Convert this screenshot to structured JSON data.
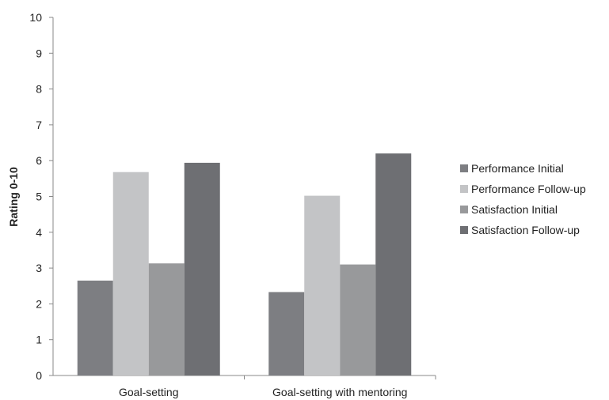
{
  "chart_data": {
    "type": "bar",
    "title": "",
    "xlabel": "",
    "ylabel": "Rating 0-10",
    "ylim": [
      0,
      10
    ],
    "yticks": [
      0,
      1,
      2,
      3,
      4,
      5,
      6,
      7,
      8,
      9,
      10
    ],
    "grid": false,
    "legend_position": "right",
    "categories": [
      "Goal-setting",
      "Goal-setting with mentoring"
    ],
    "series": [
      {
        "name": "Performance Initial",
        "values": [
          2.65,
          2.33
        ],
        "color": "#7d7e82"
      },
      {
        "name": "Performance Follow-up",
        "values": [
          5.68,
          5.02
        ],
        "color": "#c3c4c6"
      },
      {
        "name": "Satisfaction Initial",
        "values": [
          3.13,
          3.1
        ],
        "color": "#98999b"
      },
      {
        "name": "Satisfaction Follow-up",
        "values": [
          5.94,
          6.2
        ],
        "color": "#6e6f73"
      }
    ]
  }
}
